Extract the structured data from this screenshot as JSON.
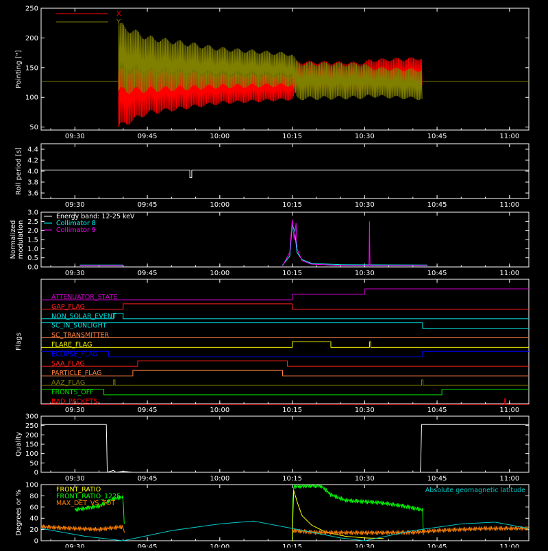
{
  "colors": {
    "background": "#000000",
    "axes": "#ffffff",
    "x": "#ff0000",
    "y": "#808000",
    "collimator8": "#00ffff",
    "collimator9": "#ff00ff",
    "front_ratio": "#ffff00",
    "front_ratio_1225": "#00ff00",
    "max_det": "#ff8000",
    "geomag": "#00c8c8"
  },
  "time_ticks": [
    "09:30",
    "09:45",
    "10:00",
    "10:15",
    "10:30",
    "10:45",
    "11:00"
  ],
  "time_tick_minutes": [
    570,
    585,
    600,
    615,
    630,
    645,
    660
  ],
  "time_range": [
    563,
    664
  ],
  "chart_data": [
    {
      "id": "pointing",
      "type": "line",
      "ylabel": "Pointing [\"]",
      "ylim": [
        45,
        250
      ],
      "yticks": [
        "50",
        "100",
        "150",
        "200",
        "250"
      ],
      "ytick_values": [
        50,
        100,
        150,
        200,
        250
      ],
      "legend": [
        {
          "name": "X"
        },
        {
          "name": "Y"
        }
      ],
      "baseline": 127,
      "active_range": [
        579,
        642
      ],
      "series": [
        {
          "name": "X",
          "color_key": "x",
          "upper": [
            [
              579,
              150
            ],
            [
              600,
              140
            ],
            [
              615,
              138
            ],
            [
              616,
              162
            ],
            [
              630,
              160
            ],
            [
              631,
              165
            ],
            [
              642,
              168
            ]
          ],
          "lower": [
            [
              579,
              45
            ],
            [
              585,
              70
            ],
            [
              600,
              88
            ],
            [
              615,
              95
            ],
            [
              616,
              110
            ],
            [
              630,
              108
            ],
            [
              631,
              110
            ],
            [
              642,
              118
            ]
          ]
        },
        {
          "name": "Y",
          "color_key": "y",
          "upper": [
            [
              579,
              228
            ],
            [
              585,
              205
            ],
            [
              600,
              185
            ],
            [
              615,
              175
            ],
            [
              616,
              160
            ],
            [
              630,
              158
            ],
            [
              631,
              152
            ],
            [
              642,
              148
            ]
          ],
          "lower": [
            [
              579,
              105
            ],
            [
              600,
              115
            ],
            [
              615,
              118
            ],
            [
              616,
              95
            ],
            [
              630,
              97
            ],
            [
              631,
              100
            ],
            [
              642,
              95
            ]
          ]
        }
      ]
    },
    {
      "id": "roll",
      "type": "line",
      "ylabel": "Roll period [s]",
      "ylim": [
        3.5,
        4.5
      ],
      "yticks": [
        "3.6",
        "3.8",
        "4.0",
        "4.2",
        "4.4"
      ],
      "ytick_values": [
        3.6,
        3.8,
        4.0,
        4.2,
        4.4
      ],
      "baseline": 4.02,
      "dip": {
        "x": 594,
        "y": 3.88
      }
    },
    {
      "id": "modulation",
      "type": "line",
      "ylabel": [
        "Normalized",
        "modulation"
      ],
      "ylim": [
        0,
        3.0
      ],
      "yticks": [
        "0.0",
        "0.5",
        "1.0",
        "1.5",
        "2.0",
        "2.5",
        "3.0"
      ],
      "ytick_values": [
        0,
        0.5,
        1.0,
        1.5,
        2.0,
        2.5,
        3.0
      ],
      "legend": [
        {
          "name": "Energy band: 12-25 keV"
        },
        {
          "name": "Collimator 8"
        },
        {
          "name": "Collimator 9"
        }
      ],
      "series": [
        {
          "name": "Collimator 8",
          "color_key": "collimator8",
          "segments": [
            [
              [
                571,
                0.1
              ],
              [
                580,
                0.1
              ]
            ],
            [
              [
                613,
                0.1
              ],
              [
                614.5,
                0.6
              ],
              [
                615,
                2.3
              ],
              [
                615.5,
                2.0
              ],
              [
                616,
                0.8
              ],
              [
                617,
                0.4
              ],
              [
                619,
                0.2
              ],
              [
                625,
                0.12
              ],
              [
                643,
                0.1
              ]
            ]
          ]
        },
        {
          "name": "Collimator 9",
          "color_key": "collimator9",
          "segments": [
            [
              [
                571,
                0.08
              ],
              [
                580,
                0.08
              ]
            ],
            [
              [
                613,
                0.05
              ],
              [
                614.5,
                0.8
              ],
              [
                615,
                2.6
              ],
              [
                615.4,
                1.5
              ],
              [
                615.8,
                2.4
              ],
              [
                616,
                1.0
              ],
              [
                617,
                0.35
              ],
              [
                619,
                0.15
              ],
              [
                625,
                0.08
              ],
              [
                630.9,
                0.08
              ],
              [
                631,
                2.5
              ],
              [
                631.1,
                0.08
              ],
              [
                643,
                0.08
              ]
            ]
          ]
        }
      ]
    },
    {
      "id": "flags",
      "type": "step",
      "ylabel": "Flags",
      "flags": [
        {
          "label": "ATTENUATOR_STATE",
          "color_key": "collimator9",
          "hex": "#cc00cc",
          "steps": [
            [
              563,
              0
            ],
            [
              615,
              1
            ],
            [
              630,
              2
            ]
          ]
        },
        {
          "label": "GAP_FLAG",
          "hex": "#ff2020",
          "steps": [
            [
              563,
              0
            ],
            [
              580,
              1
            ],
            [
              615,
              0
            ]
          ]
        },
        {
          "label": "NON_SOLAR_EVENT",
          "hex": "#00e0e0",
          "steps": [
            [
              563,
              0
            ],
            [
              578,
              1
            ],
            [
              580,
              0
            ]
          ]
        },
        {
          "label": "SC_IN_SUNLIGHT",
          "hex": "#00e0e0",
          "steps": [
            [
              563,
              1
            ],
            [
              642,
              0
            ]
          ]
        },
        {
          "label": "SC_TRANSMITTER",
          "hex": "#ff8040",
          "steps": [
            [
              563,
              0
            ]
          ]
        },
        {
          "label": "FLARE_FLAG",
          "hex": "#ffff00",
          "steps": [
            [
              563,
              0
            ],
            [
              615,
              1
            ],
            [
              623,
              0
            ],
            [
              631,
              1
            ],
            [
              631.3,
              0
            ]
          ]
        },
        {
          "label": "ECLIPSE_FLAG",
          "hex": "#0000ff",
          "steps": [
            [
              563,
              1
            ],
            [
              577,
              0
            ],
            [
              642,
              1
            ]
          ]
        },
        {
          "label": "SAA_FLAG",
          "hex": "#ff2020",
          "steps": [
            [
              563,
              0
            ],
            [
              583,
              1
            ],
            [
              614,
              0
            ]
          ]
        },
        {
          "label": "PARTICLE_FLAG",
          "hex": "#ff8040",
          "steps": [
            [
              563,
              0
            ],
            [
              582,
              1
            ],
            [
              613,
              0
            ]
          ]
        },
        {
          "label": "AAZ_FLAG",
          "hex": "#808000",
          "steps": [
            [
              563,
              0
            ],
            [
              578,
              1
            ],
            [
              578.3,
              0
            ],
            [
              641.8,
              1
            ],
            [
              642.1,
              0
            ]
          ]
        },
        {
          "label": "FRONTS_OFF",
          "hex": "#00e000",
          "steps": [
            [
              563,
              1
            ],
            [
              576,
              0
            ],
            [
              646,
              1
            ]
          ]
        },
        {
          "label": "BAD_PACKETS",
          "hex": "#ff0000",
          "steps": [
            [
              563,
              0
            ],
            [
              659,
              1
            ],
            [
              659.2,
              0
            ]
          ]
        }
      ]
    },
    {
      "id": "quality",
      "type": "line",
      "ylabel": "Quality",
      "ylim": [
        0,
        300
      ],
      "yticks": [
        "0",
        "50",
        "100",
        "150",
        "200",
        "250",
        "300"
      ],
      "ytick_values": [
        0,
        50,
        100,
        150,
        200,
        250,
        300
      ],
      "points": [
        [
          563,
          255
        ],
        [
          576.5,
          255
        ],
        [
          576.7,
          0
        ],
        [
          578,
          10
        ],
        [
          578.5,
          0
        ],
        [
          580,
          5
        ],
        [
          582,
          0
        ],
        [
          641.5,
          0
        ],
        [
          641.6,
          30
        ],
        [
          641.8,
          255
        ],
        [
          664,
          255
        ]
      ]
    },
    {
      "id": "ratios",
      "type": "line",
      "ylabel": "Degrees or %",
      "ylim": [
        0,
        100
      ],
      "yticks": [
        "0",
        "20",
        "40",
        "60",
        "80",
        "100"
      ],
      "ytick_values": [
        0,
        20,
        40,
        60,
        80,
        100
      ],
      "legend": [
        {
          "name": "FRONT_RATIO"
        },
        {
          "name": "FRONT_RATIO_1225"
        },
        {
          "name": "MAX_DET_VS_TOT"
        }
      ],
      "annotation": "Absolute geomagnetic latitude",
      "series": [
        {
          "name": "FRONT_RATIO_1225",
          "color_key": "front_ratio_1225",
          "segments": [
            [
              [
                570,
                55
              ],
              [
                575,
                62
              ],
              [
                578,
                75
              ],
              [
                580,
                78
              ],
              [
                580.3,
                0
              ]
            ],
            [
              [
                615,
                0
              ],
              [
                615.2,
                96
              ],
              [
                618,
                98
              ],
              [
                621,
                98
              ],
              [
                623,
                82
              ],
              [
                626,
                72
              ],
              [
                629,
                70
              ],
              [
                633,
                68
              ],
              [
                638,
                62
              ],
              [
                642,
                55
              ],
              [
                642.2,
                0
              ]
            ]
          ]
        },
        {
          "name": "FRONT_RATIO",
          "color_key": "front_ratio",
          "segments": [
            [
              [
                615,
                0
              ],
              [
                615.3,
                90
              ],
              [
                616,
                70
              ],
              [
                617,
                45
              ],
              [
                619,
                28
              ],
              [
                622,
                15
              ],
              [
                626,
                8
              ],
              [
                630,
                5
              ],
              [
                634,
                4
              ]
            ]
          ]
        },
        {
          "name": "MAX_DET_VS_TOT",
          "color_key": "max_det",
          "segments": [
            [
              [
                563,
                25
              ],
              [
                570,
                22
              ],
              [
                575,
                20
              ],
              [
                580,
                25
              ],
              [
                580.3,
                10
              ]
            ],
            [
              [
                615,
                18
              ],
              [
                620,
                15
              ],
              [
                630,
                14
              ],
              [
                640,
                15
              ],
              [
                645,
                18
              ],
              [
                655,
                22
              ],
              [
                664,
                22
              ]
            ]
          ]
        },
        {
          "name": "Absolute geomagnetic latitude",
          "color_key": "geomag",
          "points": [
            [
              563,
              22
            ],
            [
              572,
              8
            ],
            [
              580,
              0
            ],
            [
              590,
              18
            ],
            [
              600,
              30
            ],
            [
              607,
              35
            ],
            [
              615,
              22
            ],
            [
              625,
              5
            ],
            [
              630,
              0
            ],
            [
              640,
              18
            ],
            [
              650,
              30
            ],
            [
              657,
              33
            ],
            [
              664,
              22
            ]
          ]
        }
      ]
    }
  ]
}
